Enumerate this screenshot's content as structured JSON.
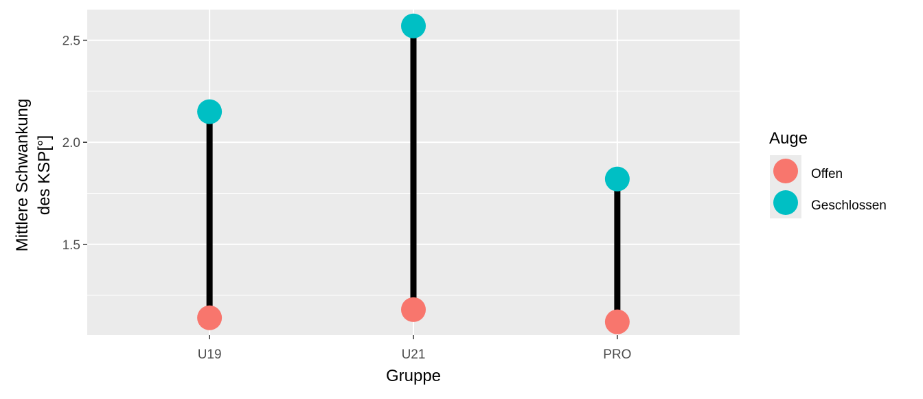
{
  "chart_data": {
    "type": "dumbbell",
    "categories": [
      "U19",
      "U21",
      "PRO"
    ],
    "series": [
      {
        "name": "Offen",
        "color": "#F8766D",
        "values": [
          1.14,
          1.18,
          1.12
        ]
      },
      {
        "name": "Geschlossen",
        "color": "#00BFC4",
        "values": [
          2.15,
          2.57,
          1.82
        ]
      }
    ],
    "connector_color": "#000000",
    "xlabel": "Gruppe",
    "ylabel_lines": [
      "Mittlere Schwankung",
      "des KSP[°]"
    ],
    "ylim": [
      1.055,
      2.65
    ],
    "yticks": [
      1.5,
      2.0,
      2.5
    ],
    "ytick_labels": [
      "1.5",
      "2.0",
      "2.5"
    ],
    "legend": {
      "title": "Auge",
      "position": "right"
    },
    "grid": true,
    "panel_background": "#EBEBEB"
  }
}
